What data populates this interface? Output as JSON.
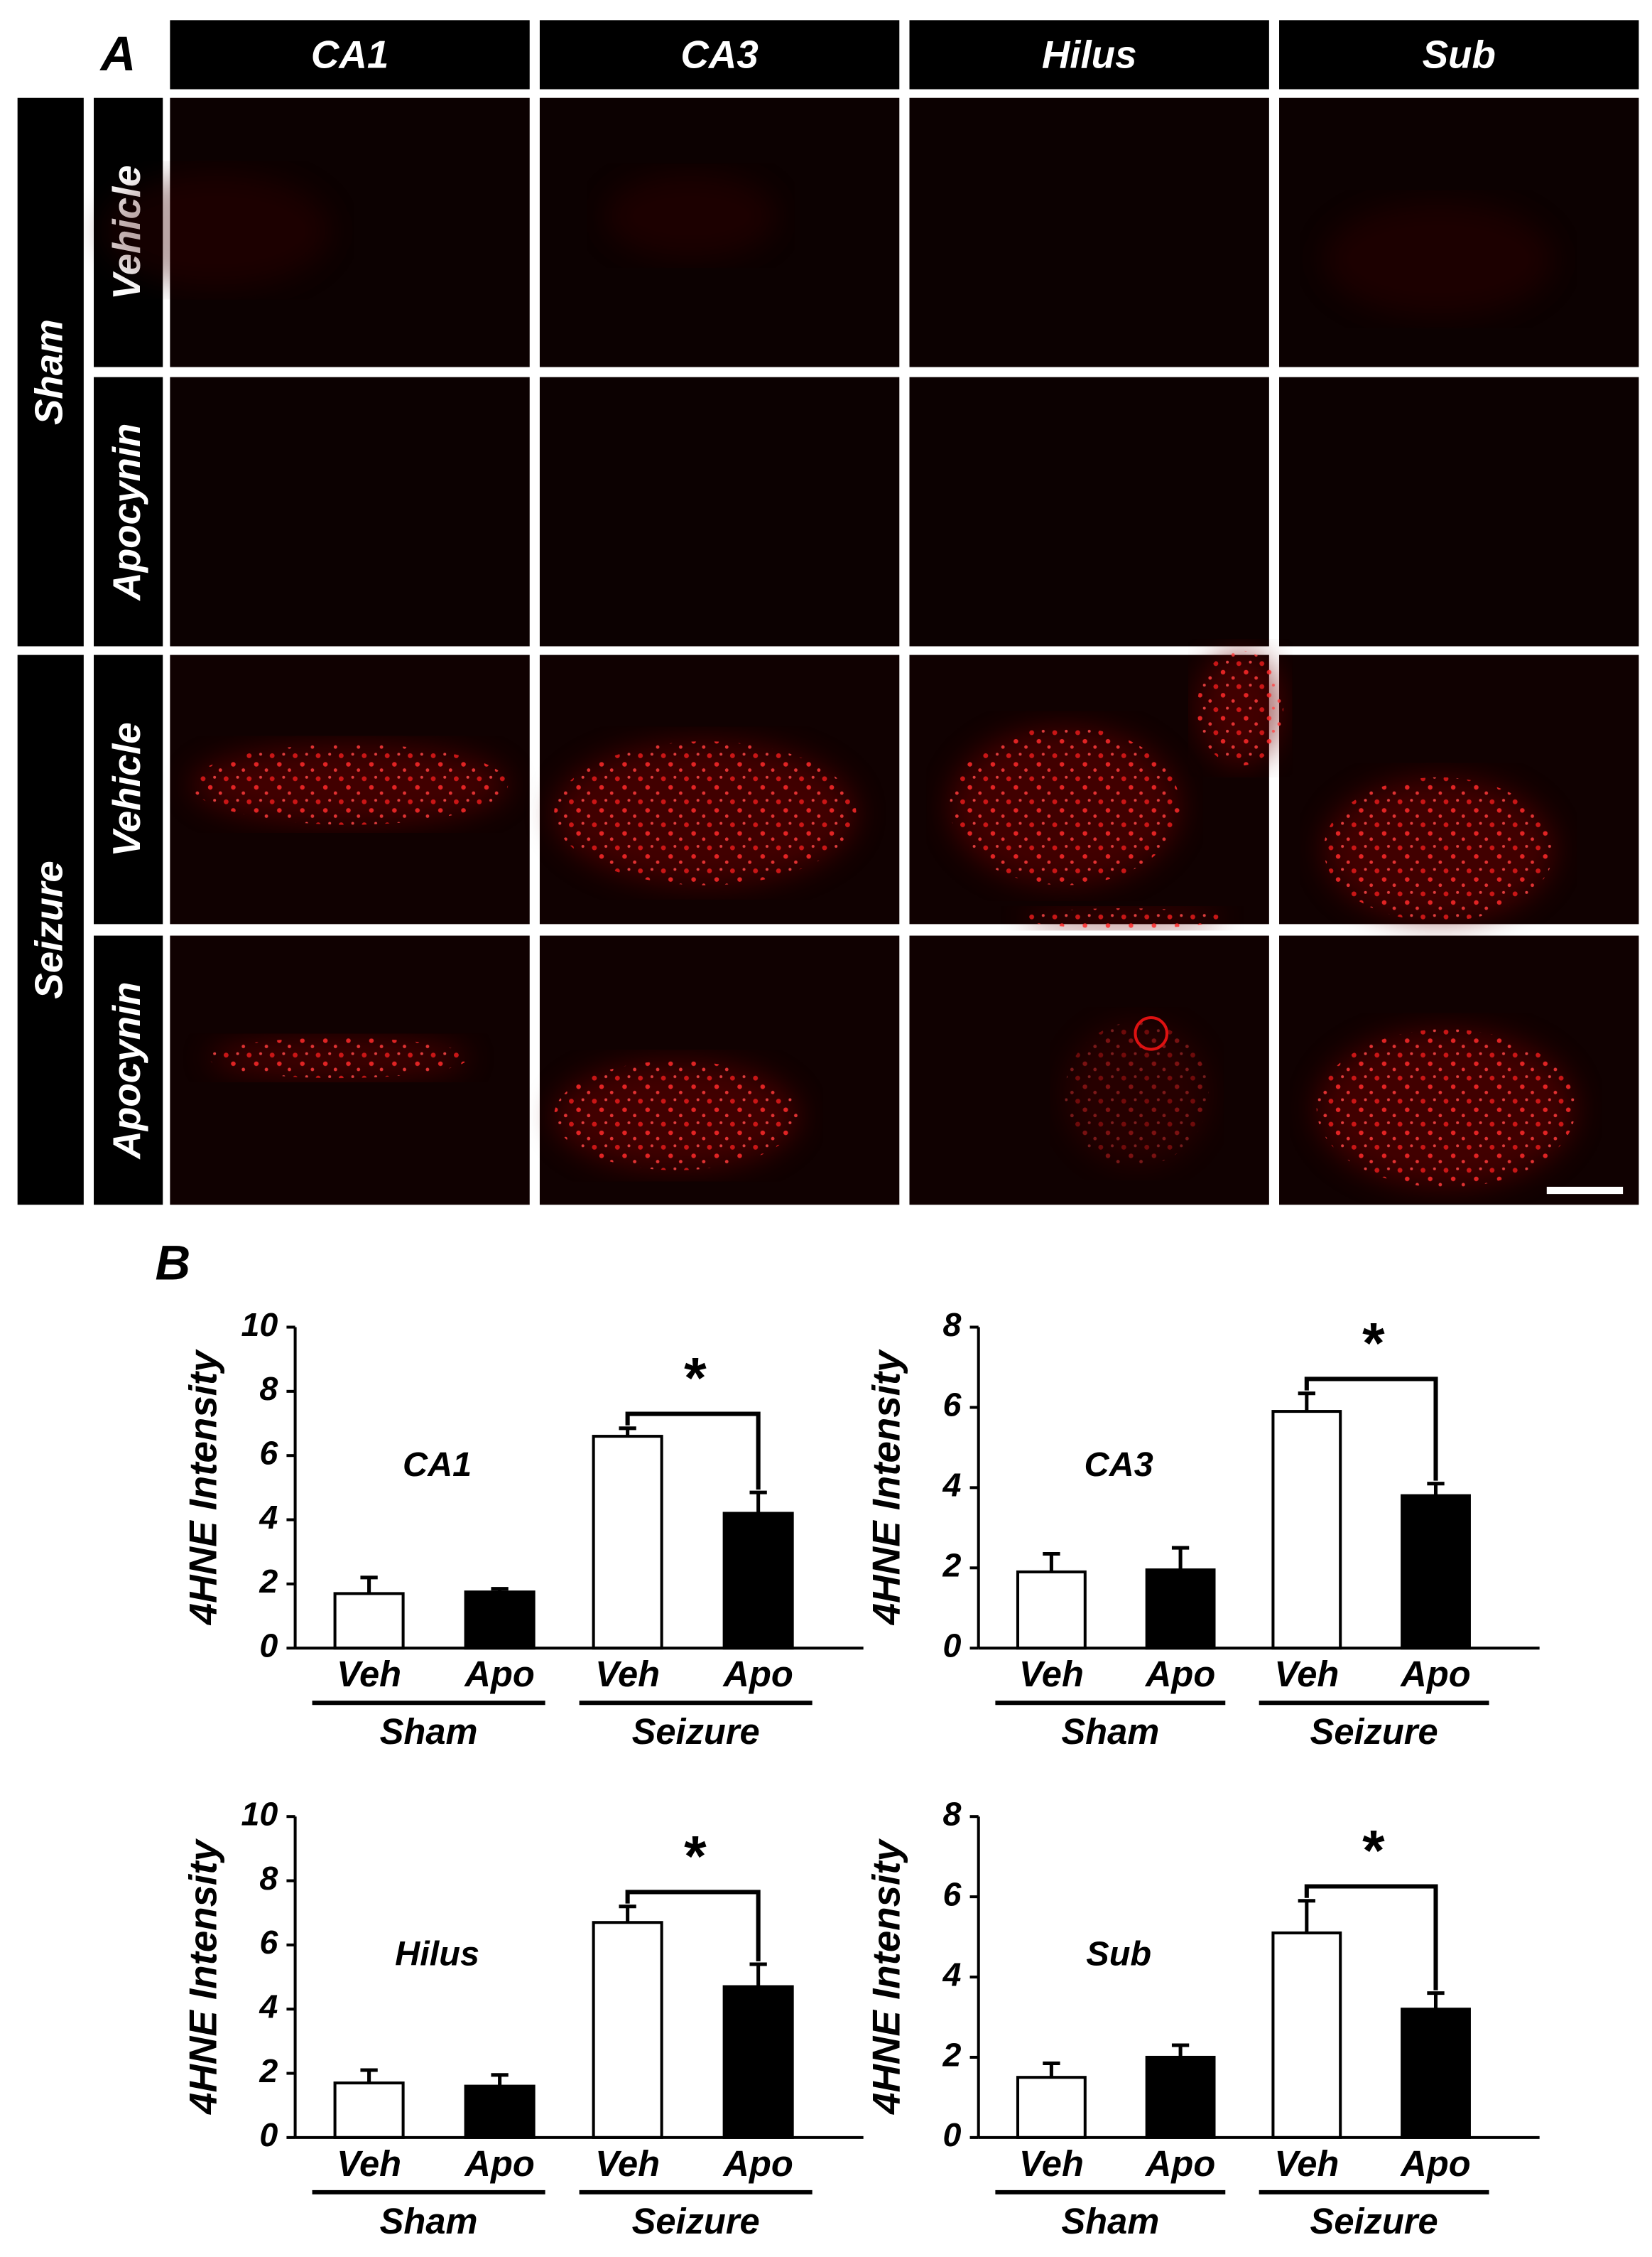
{
  "panel_a": {
    "label": "A",
    "columns": [
      "CA1",
      "CA3",
      "Hilus",
      "Sub"
    ],
    "groups": [
      {
        "name": "Sham",
        "rows": [
          "Vehicle",
          "Apocynin"
        ]
      },
      {
        "name": "Seizure",
        "rows": [
          "Vehicle",
          "Apocynin"
        ]
      }
    ]
  },
  "panel_b": {
    "label": "B"
  },
  "chart_data": [
    {
      "type": "bar",
      "label": "CA1",
      "ylabel": "4HNE Intensity",
      "categories": [
        "Veh",
        "Apo",
        "Veh",
        "Apo"
      ],
      "groups": [
        "Sham",
        "Seizure"
      ],
      "values": [
        1.7,
        1.75,
        6.6,
        4.2
      ],
      "errors": [
        0.5,
        0.1,
        0.25,
        0.65
      ],
      "colors": [
        "#ffffff",
        "#000000",
        "#ffffff",
        "#000000"
      ],
      "ylim": [
        0,
        10
      ],
      "yticks": [
        0,
        2,
        4,
        6,
        8,
        10
      ],
      "annotation": "*"
    },
    {
      "type": "bar",
      "label": "CA3",
      "ylabel": "4HNE Intensity",
      "categories": [
        "Veh",
        "Apo",
        "Veh",
        "Apo"
      ],
      "groups": [
        "Sham",
        "Seizure"
      ],
      "values": [
        1.9,
        1.95,
        5.9,
        3.8
      ],
      "errors": [
        0.45,
        0.55,
        0.45,
        0.3
      ],
      "colors": [
        "#ffffff",
        "#000000",
        "#ffffff",
        "#000000"
      ],
      "ylim": [
        0,
        8
      ],
      "yticks": [
        0,
        2,
        4,
        6,
        8
      ],
      "annotation": "*"
    },
    {
      "type": "bar",
      "label": "Hilus",
      "ylabel": "4HNE Intensity",
      "categories": [
        "Veh",
        "Apo",
        "Veh",
        "Apo"
      ],
      "groups": [
        "Sham",
        "Seizure"
      ],
      "values": [
        1.7,
        1.6,
        6.7,
        4.7
      ],
      "errors": [
        0.4,
        0.35,
        0.5,
        0.7
      ],
      "colors": [
        "#ffffff",
        "#000000",
        "#ffffff",
        "#000000"
      ],
      "ylim": [
        0,
        10
      ],
      "yticks": [
        0,
        2,
        4,
        6,
        8,
        10
      ],
      "annotation": "*"
    },
    {
      "type": "bar",
      "label": "Sub",
      "ylabel": "4HNE Intensity",
      "categories": [
        "Veh",
        "Apo",
        "Veh",
        "Apo"
      ],
      "groups": [
        "Sham",
        "Seizure"
      ],
      "values": [
        1.5,
        2.0,
        5.1,
        3.2
      ],
      "errors": [
        0.35,
        0.3,
        0.8,
        0.4
      ],
      "colors": [
        "#ffffff",
        "#000000",
        "#ffffff",
        "#000000"
      ],
      "ylim": [
        0,
        8
      ],
      "yticks": [
        0,
        2,
        4,
        6,
        8
      ],
      "annotation": "*"
    }
  ]
}
